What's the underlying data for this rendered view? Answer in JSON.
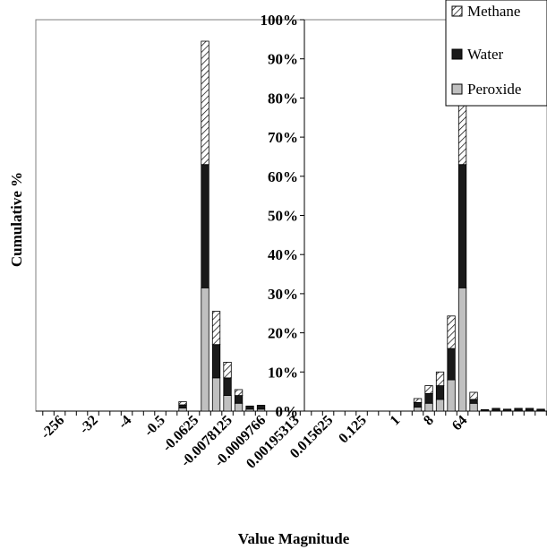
{
  "chart_data": {
    "type": "bar",
    "stacked": true,
    "xlabel": "Value Magnitude",
    "ylabel": "Cumulative %",
    "ylim": [
      0,
      100
    ],
    "y_ticks": [
      "0%",
      "10%",
      "20%",
      "30%",
      "40%",
      "50%",
      "60%",
      "70%",
      "80%",
      "90%",
      "100%"
    ],
    "x_tick_labels": [
      "-256",
      "-32",
      "-4",
      "-0.5",
      "-0.0625",
      "-0.0078125",
      "-0.0009766",
      "0.00195313",
      "0.015625",
      "0.125",
      "1",
      "8",
      "64"
    ],
    "legend_position": "top-right",
    "grid": false,
    "series": [
      {
        "name": "Peroxide",
        "color": "#c0c0c0",
        "pattern": "solid",
        "values": [
          0,
          0,
          0,
          0,
          0,
          0,
          0,
          0,
          0,
          0,
          0,
          0,
          0.8,
          0,
          31.5,
          8.5,
          4,
          2,
          0.5,
          0.5,
          0,
          0,
          0,
          0,
          0,
          0,
          0,
          0,
          0,
          0,
          0,
          0,
          0,
          1,
          2,
          3,
          8,
          31.5,
          2,
          0.2,
          0.2,
          0.2,
          0.2,
          0.2,
          0.2,
          0.2,
          0.2
        ]
      },
      {
        "name": "Water",
        "color": "#1a1a1a",
        "pattern": "solid",
        "values": [
          0,
          0,
          0,
          0,
          0,
          0,
          0,
          0,
          0,
          0,
          0,
          0,
          0.8,
          0,
          31.5,
          8.5,
          4.5,
          2,
          0.8,
          1,
          0,
          0,
          0,
          0,
          0,
          0,
          0,
          0,
          0,
          0,
          0,
          0,
          0,
          1.2,
          2.5,
          3.5,
          8,
          31.5,
          1,
          0.2,
          0.5,
          0.3,
          0.5,
          0.5,
          0.3,
          0.2,
          0.2
        ]
      },
      {
        "name": "Methane",
        "color": "#ffffff",
        "pattern": "hatch",
        "values": [
          0,
          0,
          0,
          0,
          0,
          0,
          0,
          0,
          0,
          0,
          0,
          0,
          0.8,
          0,
          31.5,
          8.5,
          4,
          1.5,
          0,
          0,
          0,
          0,
          0,
          0,
          0,
          0,
          0,
          0,
          0,
          0,
          0,
          0,
          0,
          1,
          2,
          3.5,
          8.3,
          31.5,
          1.8,
          0,
          0,
          0,
          0,
          0,
          0,
          0,
          0
        ]
      }
    ]
  }
}
